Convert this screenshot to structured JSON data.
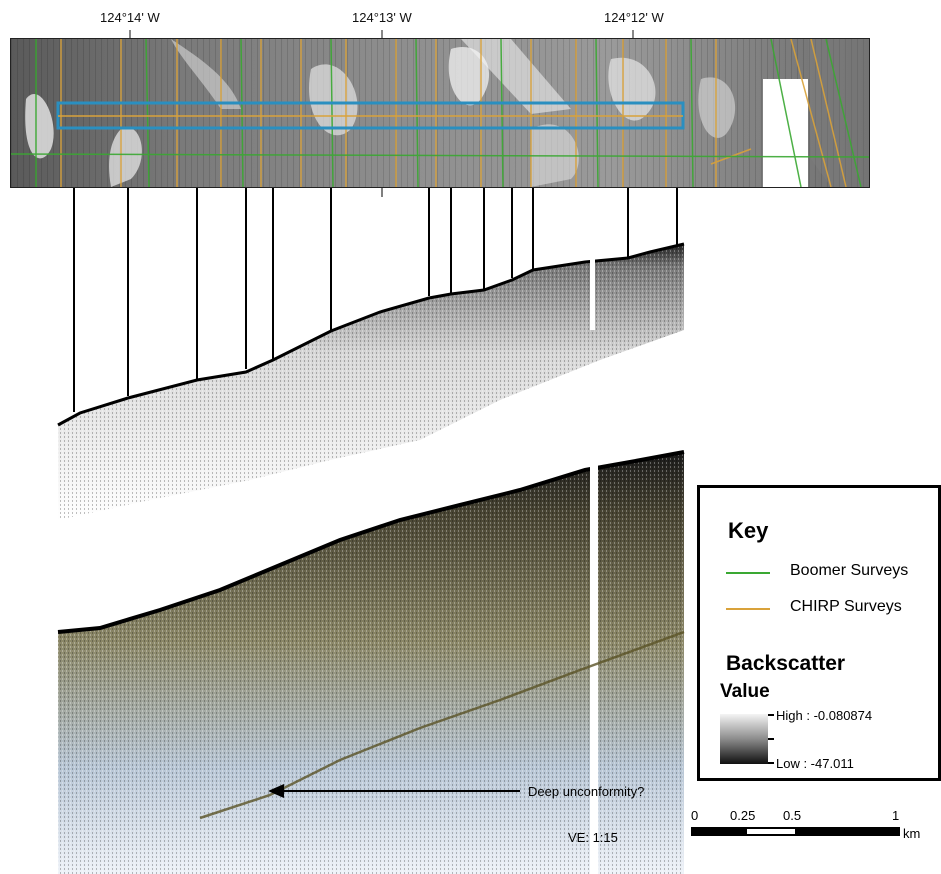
{
  "longitude_labels": [
    "124°14' W",
    "124°13' W",
    "124°12' W"
  ],
  "annotation": "Deep unconformity?",
  "vertical_exaggeration": "VE: 1:15",
  "key": {
    "title": "Key",
    "items": [
      {
        "label": "Boomer Surveys",
        "color": "#3aa832"
      },
      {
        "label": "CHIRP Surveys",
        "color": "#d9a23a"
      }
    ],
    "backscatter": {
      "title": "Backscatter",
      "subtitle": "Value",
      "high_label": "High : -0.080874",
      "low_label": "Low : -47.011"
    }
  },
  "scale_bar": {
    "ticks": [
      "0",
      "0.25",
      "0.5",
      "1"
    ],
    "unit": "km"
  },
  "colors": {
    "box_outline": "#2a8fc0",
    "boomer": "#3aa832",
    "chirp": "#d9a23a"
  }
}
